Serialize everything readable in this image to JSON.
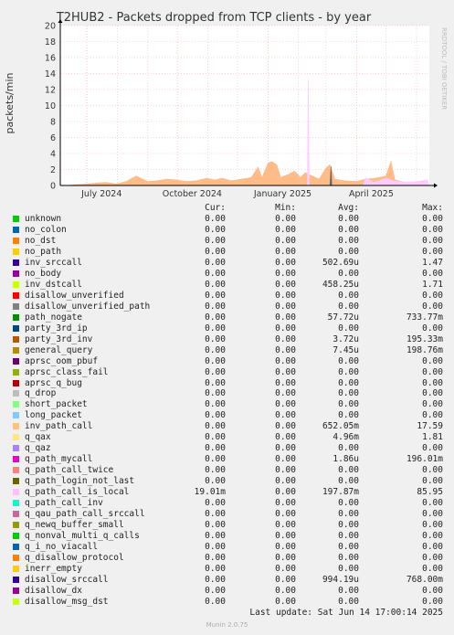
{
  "chart_data": {
    "type": "area",
    "title": "T2HUB2 - Packets dropped from TCP clients - by year",
    "ylabel": "packets/min",
    "ylim": [
      0,
      20
    ],
    "yticks": [
      0,
      2,
      4,
      6,
      8,
      10,
      12,
      14,
      16,
      18,
      20
    ],
    "xlim": [
      "2024-06-04",
      "2025-06-14"
    ],
    "xticks": [
      {
        "date": "2024-07-01",
        "label": "July 2024"
      },
      {
        "date": "2024-10-01",
        "label": "October 2024"
      },
      {
        "date": "2025-01-01",
        "label": "January 2025"
      },
      {
        "date": "2025-04-01",
        "label": "April 2025"
      }
    ],
    "grid": true,
    "series": [
      {
        "name": "inv_path_call",
        "color": "#FFBB88",
        "points": [
          [
            "2024-06-10",
            0
          ],
          [
            "2024-06-20",
            0.1
          ],
          [
            "2024-07-01",
            0.2
          ],
          [
            "2024-07-10",
            0.3
          ],
          [
            "2024-07-20",
            0.4
          ],
          [
            "2024-07-31",
            0.2
          ],
          [
            "2024-08-10",
            0.5
          ],
          [
            "2024-08-20",
            1.2
          ],
          [
            "2024-08-25",
            0.9
          ],
          [
            "2024-09-01",
            0.5
          ],
          [
            "2024-09-10",
            0.6
          ],
          [
            "2024-09-20",
            0.8
          ],
          [
            "2024-09-30",
            0.7
          ],
          [
            "2024-10-10",
            0.5
          ],
          [
            "2024-10-20",
            0.6
          ],
          [
            "2024-10-31",
            0.9
          ],
          [
            "2024-11-08",
            0.7
          ],
          [
            "2024-11-15",
            0.9
          ],
          [
            "2024-11-25",
            0.6
          ],
          [
            "2024-12-05",
            0.8
          ],
          [
            "2024-12-15",
            1.0
          ],
          [
            "2024-12-22",
            2.3
          ],
          [
            "2024-12-26",
            1.0
          ],
          [
            "2025-01-01",
            2.8
          ],
          [
            "2025-01-05",
            3.0
          ],
          [
            "2025-01-10",
            2.6
          ],
          [
            "2025-01-14",
            1.0
          ],
          [
            "2025-01-22",
            1.4
          ],
          [
            "2025-01-28",
            1.8
          ],
          [
            "2025-02-03",
            1.0
          ],
          [
            "2025-02-08",
            1.6
          ],
          [
            "2025-02-15",
            1.2
          ],
          [
            "2025-02-22",
            0.8
          ],
          [
            "2025-03-01",
            2.2
          ],
          [
            "2025-03-05",
            2.6
          ],
          [
            "2025-03-10",
            0.8
          ],
          [
            "2025-03-20",
            0.6
          ],
          [
            "2025-04-01",
            0.5
          ],
          [
            "2025-04-10",
            0.8
          ],
          [
            "2025-04-20",
            0.9
          ],
          [
            "2025-05-01",
            1.2
          ],
          [
            "2025-05-06",
            3.0
          ],
          [
            "2025-05-10",
            0.7
          ],
          [
            "2025-05-20",
            0.4
          ],
          [
            "2025-05-31",
            0.4
          ],
          [
            "2025-06-10",
            0.3
          ],
          [
            "2025-06-14",
            0
          ]
        ]
      },
      {
        "name": "q_path_call_is_local",
        "color": "#FFCCFF",
        "points": [
          [
            "2025-02-10",
            0
          ],
          [
            "2025-02-11",
            13.2
          ],
          [
            "2025-02-12",
            0
          ],
          [
            "2025-04-08",
            0
          ],
          [
            "2025-04-10",
            1.0
          ],
          [
            "2025-04-18",
            0.4
          ],
          [
            "2025-05-02",
            0.9
          ],
          [
            "2025-05-08",
            0.6
          ],
          [
            "2025-05-20",
            0.4
          ],
          [
            "2025-06-01",
            0.5
          ],
          [
            "2025-06-12",
            0.7
          ],
          [
            "2025-06-14",
            0
          ]
        ]
      },
      {
        "name": "general_query",
        "color": "#666666",
        "points": [
          [
            "2025-03-05",
            0
          ],
          [
            "2025-03-06",
            2.4
          ],
          [
            "2025-03-07",
            0
          ]
        ]
      }
    ]
  },
  "legend": {
    "headers": {
      "cur": "Cur:",
      "min": "Min:",
      "avg": "Avg:",
      "max": "Max:"
    },
    "rows": [
      {
        "name": "unknown",
        "color": "#00CC00",
        "cur": "0.00",
        "min": "0.00",
        "avg": "0.00",
        "max": "0.00"
      },
      {
        "name": "no_colon",
        "color": "#0066B3",
        "cur": "0.00",
        "min": "0.00",
        "avg": "0.00",
        "max": "0.00"
      },
      {
        "name": "no_dst",
        "color": "#FF8000",
        "cur": "0.00",
        "min": "0.00",
        "avg": "0.00",
        "max": "0.00"
      },
      {
        "name": "no_path",
        "color": "#FFCC00",
        "cur": "0.00",
        "min": "0.00",
        "avg": "0.00",
        "max": "0.00"
      },
      {
        "name": "inv_srccall",
        "color": "#330099",
        "cur": "0.00",
        "min": "0.00",
        "avg": "502.69u",
        "max": "1.47"
      },
      {
        "name": "no_body",
        "color": "#990099",
        "cur": "0.00",
        "min": "0.00",
        "avg": "0.00",
        "max": "0.00"
      },
      {
        "name": "inv_dstcall",
        "color": "#CCFF00",
        "cur": "0.00",
        "min": "0.00",
        "avg": "458.25u",
        "max": "1.71"
      },
      {
        "name": "disallow_unverified",
        "color": "#FF0000",
        "cur": "0.00",
        "min": "0.00",
        "avg": "0.00",
        "max": "0.00"
      },
      {
        "name": "disallow_unverified_path",
        "color": "#808080",
        "cur": "0.00",
        "min": "0.00",
        "avg": "0.00",
        "max": "0.00"
      },
      {
        "name": "path_nogate",
        "color": "#008F00",
        "cur": "0.00",
        "min": "0.00",
        "avg": "57.72u",
        "max": "733.77m"
      },
      {
        "name": "party_3rd_ip",
        "color": "#00487D",
        "cur": "0.00",
        "min": "0.00",
        "avg": "0.00",
        "max": "0.00"
      },
      {
        "name": "party_3rd_inv",
        "color": "#B35A00",
        "cur": "0.00",
        "min": "0.00",
        "avg": "3.72u",
        "max": "195.33m"
      },
      {
        "name": "general_query",
        "color": "#B38F00",
        "cur": "0.00",
        "min": "0.00",
        "avg": "7.45u",
        "max": "198.76m"
      },
      {
        "name": "aprsc_oom_pbuf",
        "color": "#6B006B",
        "cur": "0.00",
        "min": "0.00",
        "avg": "0.00",
        "max": "0.00"
      },
      {
        "name": "aprsc_class_fail",
        "color": "#8FB300",
        "cur": "0.00",
        "min": "0.00",
        "avg": "0.00",
        "max": "0.00"
      },
      {
        "name": "aprsc_q_bug",
        "color": "#B30000",
        "cur": "0.00",
        "min": "0.00",
        "avg": "0.00",
        "max": "0.00"
      },
      {
        "name": "q_drop",
        "color": "#BEBEBE",
        "cur": "0.00",
        "min": "0.00",
        "avg": "0.00",
        "max": "0.00"
      },
      {
        "name": "short_packet",
        "color": "#80FF80",
        "cur": "0.00",
        "min": "0.00",
        "avg": "0.00",
        "max": "0.00"
      },
      {
        "name": "long_packet",
        "color": "#80C9FF",
        "cur": "0.00",
        "min": "0.00",
        "avg": "0.00",
        "max": "0.00"
      },
      {
        "name": "inv_path_call",
        "color": "#FFC080",
        "cur": "0.00",
        "min": "0.00",
        "avg": "652.05m",
        "max": "17.59"
      },
      {
        "name": "q_qax",
        "color": "#FFE680",
        "cur": "0.00",
        "min": "0.00",
        "avg": "4.96m",
        "max": "1.81"
      },
      {
        "name": "q_qaz",
        "color": "#AA80FF",
        "cur": "0.00",
        "min": "0.00",
        "avg": "0.00",
        "max": "0.00"
      },
      {
        "name": "q_path_mycall",
        "color": "#EE00CC",
        "cur": "0.00",
        "min": "0.00",
        "avg": "1.86u",
        "max": "196.01m"
      },
      {
        "name": "q_path_call_twice",
        "color": "#FF8080",
        "cur": "0.00",
        "min": "0.00",
        "avg": "0.00",
        "max": "0.00"
      },
      {
        "name": "q_path_login_not_last",
        "color": "#666600",
        "cur": "0.00",
        "min": "0.00",
        "avg": "0.00",
        "max": "0.00"
      },
      {
        "name": "q_path_call_is_local",
        "color": "#FFBFFF",
        "cur": "19.01m",
        "min": "0.00",
        "avg": "197.87m",
        "max": "85.95"
      },
      {
        "name": "q_path_call_inv",
        "color": "#00FFCC",
        "cur": "0.00",
        "min": "0.00",
        "avg": "0.00",
        "max": "0.00"
      },
      {
        "name": "q_qau_path_call_srccall",
        "color": "#CC6699",
        "cur": "0.00",
        "min": "0.00",
        "avg": "0.00",
        "max": "0.00"
      },
      {
        "name": "q_newq_buffer_small",
        "color": "#999900",
        "cur": "0.00",
        "min": "0.00",
        "avg": "0.00",
        "max": "0.00"
      },
      {
        "name": "q_nonval_multi_q_calls",
        "color": "#00CC00",
        "cur": "0.00",
        "min": "0.00",
        "avg": "0.00",
        "max": "0.00"
      },
      {
        "name": "q_i_no_viacall",
        "color": "#0066B3",
        "cur": "0.00",
        "min": "0.00",
        "avg": "0.00",
        "max": "0.00"
      },
      {
        "name": "q_disallow_protocol",
        "color": "#FF8000",
        "cur": "0.00",
        "min": "0.00",
        "avg": "0.00",
        "max": "0.00"
      },
      {
        "name": "inerr_empty",
        "color": "#FFCC00",
        "cur": "0.00",
        "min": "0.00",
        "avg": "0.00",
        "max": "0.00"
      },
      {
        "name": "disallow_srccall",
        "color": "#330099",
        "cur": "0.00",
        "min": "0.00",
        "avg": "994.19u",
        "max": "768.00m"
      },
      {
        "name": "disallow_dx",
        "color": "#990099",
        "cur": "0.00",
        "min": "0.00",
        "avg": "0.00",
        "max": "0.00"
      },
      {
        "name": "disallow_msg_dst",
        "color": "#CCFF00",
        "cur": "0.00",
        "min": "0.00",
        "avg": "0.00",
        "max": "0.00"
      }
    ]
  },
  "last_update": "Last update: Sat Jun 14 17:00:14 2025",
  "side_text": "RRDTOOL / TOBI OETIKER",
  "footer": "Munin 2.0.75",
  "colors": {
    "background": "#F0F0F0",
    "plot_background": "#FFFFFF",
    "grid": "#FFAAAA",
    "axis": "#000000"
  }
}
